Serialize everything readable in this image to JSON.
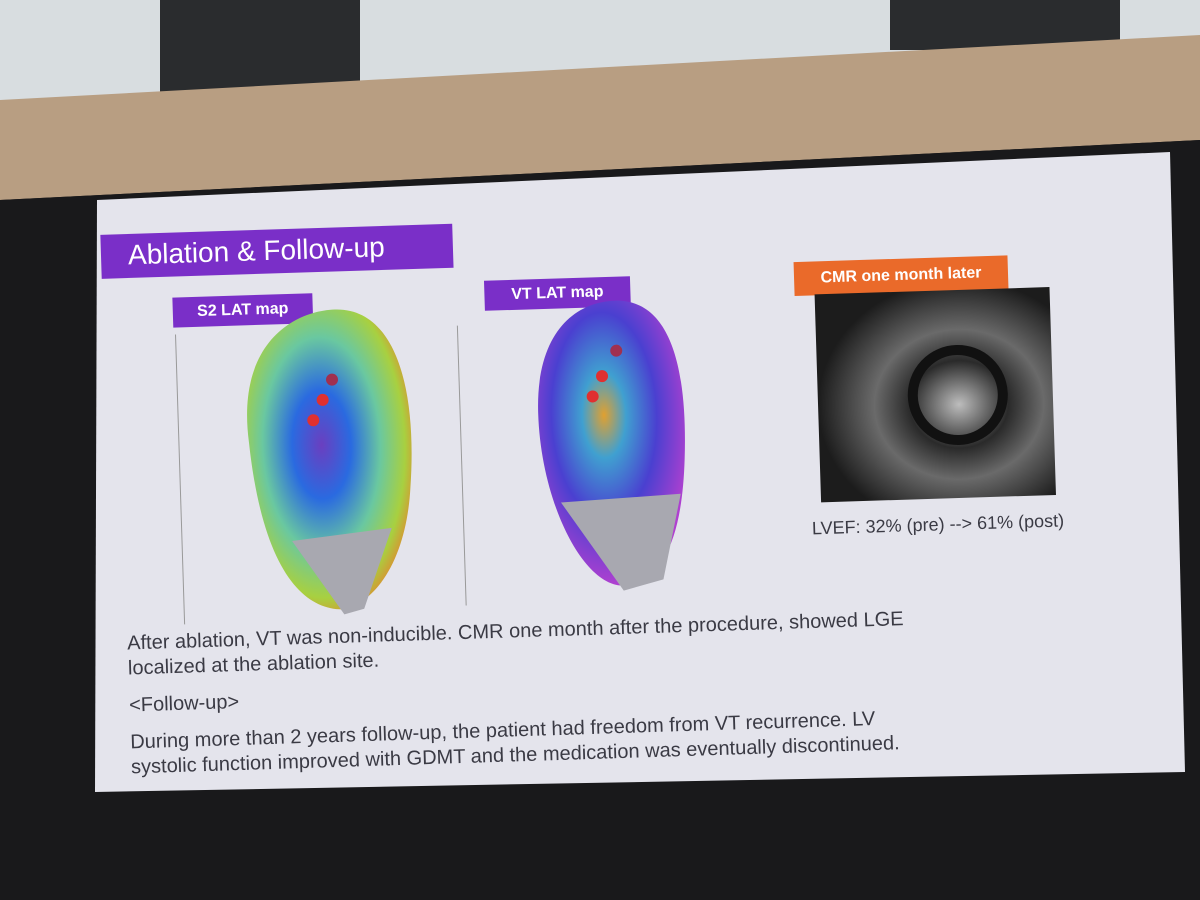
{
  "slide": {
    "title": "Ablation & Follow-up",
    "panels": [
      "S2 LAT map",
      "VT LAT map",
      "CMR one month later"
    ],
    "lvef": "LVEF: 32% (pre) --> 61% (post)",
    "paragraph1": [
      "After ablation, VT was non-inducible. CMR one month after the procedure, showed LGE",
      "localized at the ablation site."
    ],
    "subheading": "<Follow-up>",
    "paragraph2": [
      "During more than 2 years follow-up, the patient had freedom from VT recurrence. LV",
      "systolic function improved with GDMT and the medication was eventually discontinued."
    ]
  }
}
